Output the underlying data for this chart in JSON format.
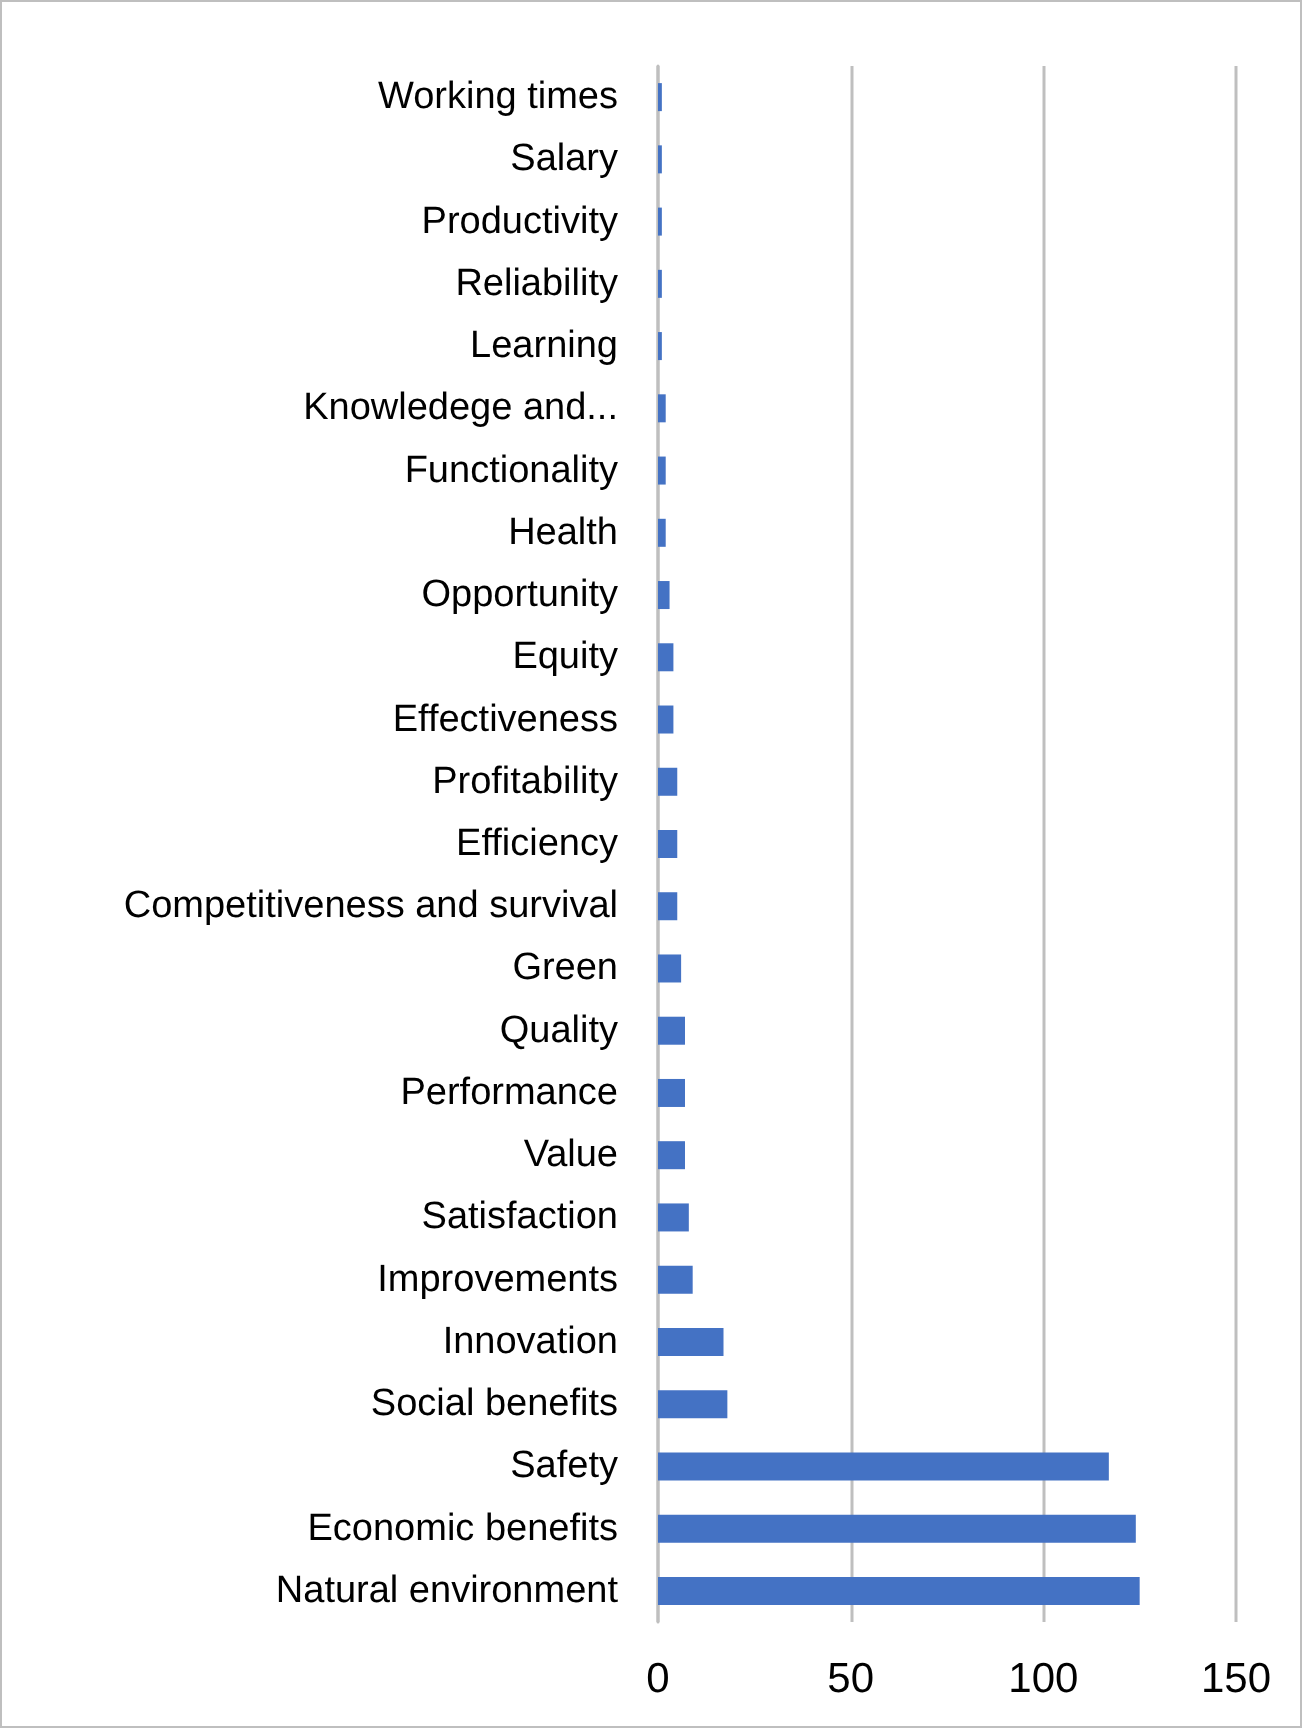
{
  "chart_data": {
    "type": "bar",
    "orientation": "horizontal",
    "categories": [
      "Working times",
      "Salary",
      "Productivity",
      "Reliability",
      "Learning",
      "Knowledege and...",
      "Functionality",
      "Health",
      "Opportunity",
      "Equity",
      "Effectiveness",
      "Profitability",
      "Efficiency",
      "Competitiveness and survival",
      "Green",
      "Quality",
      "Performance",
      "Value",
      "Satisfaction",
      "Improvements",
      "Innovation",
      "Social benefits",
      "Safety",
      "Economic benefits",
      "Natural environment"
    ],
    "values": [
      1,
      1,
      1,
      1,
      1,
      2,
      2,
      2,
      3,
      4,
      4,
      5,
      5,
      5,
      6,
      7,
      7,
      7,
      8,
      9,
      17,
      18,
      117,
      124,
      125
    ],
    "color": "#4472c4",
    "xlim": [
      0,
      150
    ],
    "xticks": [
      0,
      50,
      100,
      150
    ],
    "grid": "x"
  }
}
